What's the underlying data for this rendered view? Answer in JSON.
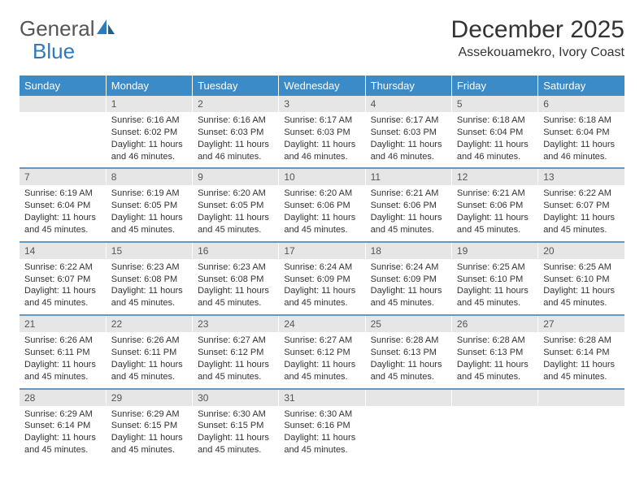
{
  "logo": {
    "text_general": "General",
    "text_blue": "Blue"
  },
  "title": "December 2025",
  "location": "Assekouamekro, Ivory Coast",
  "colors": {
    "header_bg": "#3b8bc8",
    "header_text": "#ffffff",
    "daynum_bg": "#e6e6e6",
    "row_border": "#6699c2",
    "text": "#333333"
  },
  "day_headers": [
    "Sunday",
    "Monday",
    "Tuesday",
    "Wednesday",
    "Thursday",
    "Friday",
    "Saturday"
  ],
  "weeks": [
    [
      {
        "n": "",
        "sr": "",
        "ss": "",
        "dl": ""
      },
      {
        "n": "1",
        "sr": "Sunrise: 6:16 AM",
        "ss": "Sunset: 6:02 PM",
        "dl": "Daylight: 11 hours and 46 minutes."
      },
      {
        "n": "2",
        "sr": "Sunrise: 6:16 AM",
        "ss": "Sunset: 6:03 PM",
        "dl": "Daylight: 11 hours and 46 minutes."
      },
      {
        "n": "3",
        "sr": "Sunrise: 6:17 AM",
        "ss": "Sunset: 6:03 PM",
        "dl": "Daylight: 11 hours and 46 minutes."
      },
      {
        "n": "4",
        "sr": "Sunrise: 6:17 AM",
        "ss": "Sunset: 6:03 PM",
        "dl": "Daylight: 11 hours and 46 minutes."
      },
      {
        "n": "5",
        "sr": "Sunrise: 6:18 AM",
        "ss": "Sunset: 6:04 PM",
        "dl": "Daylight: 11 hours and 46 minutes."
      },
      {
        "n": "6",
        "sr": "Sunrise: 6:18 AM",
        "ss": "Sunset: 6:04 PM",
        "dl": "Daylight: 11 hours and 46 minutes."
      }
    ],
    [
      {
        "n": "7",
        "sr": "Sunrise: 6:19 AM",
        "ss": "Sunset: 6:04 PM",
        "dl": "Daylight: 11 hours and 45 minutes."
      },
      {
        "n": "8",
        "sr": "Sunrise: 6:19 AM",
        "ss": "Sunset: 6:05 PM",
        "dl": "Daylight: 11 hours and 45 minutes."
      },
      {
        "n": "9",
        "sr": "Sunrise: 6:20 AM",
        "ss": "Sunset: 6:05 PM",
        "dl": "Daylight: 11 hours and 45 minutes."
      },
      {
        "n": "10",
        "sr": "Sunrise: 6:20 AM",
        "ss": "Sunset: 6:06 PM",
        "dl": "Daylight: 11 hours and 45 minutes."
      },
      {
        "n": "11",
        "sr": "Sunrise: 6:21 AM",
        "ss": "Sunset: 6:06 PM",
        "dl": "Daylight: 11 hours and 45 minutes."
      },
      {
        "n": "12",
        "sr": "Sunrise: 6:21 AM",
        "ss": "Sunset: 6:06 PM",
        "dl": "Daylight: 11 hours and 45 minutes."
      },
      {
        "n": "13",
        "sr": "Sunrise: 6:22 AM",
        "ss": "Sunset: 6:07 PM",
        "dl": "Daylight: 11 hours and 45 minutes."
      }
    ],
    [
      {
        "n": "14",
        "sr": "Sunrise: 6:22 AM",
        "ss": "Sunset: 6:07 PM",
        "dl": "Daylight: 11 hours and 45 minutes."
      },
      {
        "n": "15",
        "sr": "Sunrise: 6:23 AM",
        "ss": "Sunset: 6:08 PM",
        "dl": "Daylight: 11 hours and 45 minutes."
      },
      {
        "n": "16",
        "sr": "Sunrise: 6:23 AM",
        "ss": "Sunset: 6:08 PM",
        "dl": "Daylight: 11 hours and 45 minutes."
      },
      {
        "n": "17",
        "sr": "Sunrise: 6:24 AM",
        "ss": "Sunset: 6:09 PM",
        "dl": "Daylight: 11 hours and 45 minutes."
      },
      {
        "n": "18",
        "sr": "Sunrise: 6:24 AM",
        "ss": "Sunset: 6:09 PM",
        "dl": "Daylight: 11 hours and 45 minutes."
      },
      {
        "n": "19",
        "sr": "Sunrise: 6:25 AM",
        "ss": "Sunset: 6:10 PM",
        "dl": "Daylight: 11 hours and 45 minutes."
      },
      {
        "n": "20",
        "sr": "Sunrise: 6:25 AM",
        "ss": "Sunset: 6:10 PM",
        "dl": "Daylight: 11 hours and 45 minutes."
      }
    ],
    [
      {
        "n": "21",
        "sr": "Sunrise: 6:26 AM",
        "ss": "Sunset: 6:11 PM",
        "dl": "Daylight: 11 hours and 45 minutes."
      },
      {
        "n": "22",
        "sr": "Sunrise: 6:26 AM",
        "ss": "Sunset: 6:11 PM",
        "dl": "Daylight: 11 hours and 45 minutes."
      },
      {
        "n": "23",
        "sr": "Sunrise: 6:27 AM",
        "ss": "Sunset: 6:12 PM",
        "dl": "Daylight: 11 hours and 45 minutes."
      },
      {
        "n": "24",
        "sr": "Sunrise: 6:27 AM",
        "ss": "Sunset: 6:12 PM",
        "dl": "Daylight: 11 hours and 45 minutes."
      },
      {
        "n": "25",
        "sr": "Sunrise: 6:28 AM",
        "ss": "Sunset: 6:13 PM",
        "dl": "Daylight: 11 hours and 45 minutes."
      },
      {
        "n": "26",
        "sr": "Sunrise: 6:28 AM",
        "ss": "Sunset: 6:13 PM",
        "dl": "Daylight: 11 hours and 45 minutes."
      },
      {
        "n": "27",
        "sr": "Sunrise: 6:28 AM",
        "ss": "Sunset: 6:14 PM",
        "dl": "Daylight: 11 hours and 45 minutes."
      }
    ],
    [
      {
        "n": "28",
        "sr": "Sunrise: 6:29 AM",
        "ss": "Sunset: 6:14 PM",
        "dl": "Daylight: 11 hours and 45 minutes."
      },
      {
        "n": "29",
        "sr": "Sunrise: 6:29 AM",
        "ss": "Sunset: 6:15 PM",
        "dl": "Daylight: 11 hours and 45 minutes."
      },
      {
        "n": "30",
        "sr": "Sunrise: 6:30 AM",
        "ss": "Sunset: 6:15 PM",
        "dl": "Daylight: 11 hours and 45 minutes."
      },
      {
        "n": "31",
        "sr": "Sunrise: 6:30 AM",
        "ss": "Sunset: 6:16 PM",
        "dl": "Daylight: 11 hours and 45 minutes."
      },
      {
        "n": "",
        "sr": "",
        "ss": "",
        "dl": ""
      },
      {
        "n": "",
        "sr": "",
        "ss": "",
        "dl": ""
      },
      {
        "n": "",
        "sr": "",
        "ss": "",
        "dl": ""
      }
    ]
  ]
}
